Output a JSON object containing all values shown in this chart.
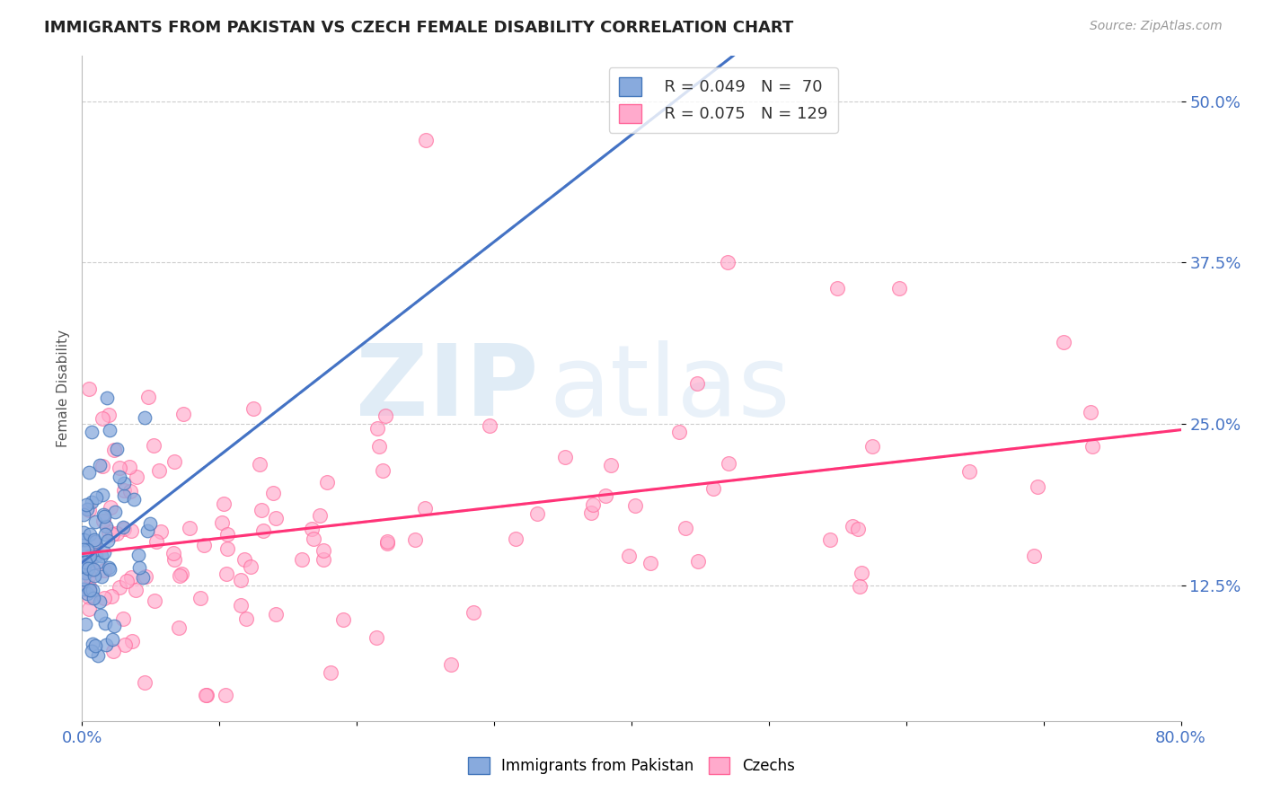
{
  "title": "IMMIGRANTS FROM PAKISTAN VS CZECH FEMALE DISABILITY CORRELATION CHART",
  "source": "Source: ZipAtlas.com",
  "ylabel": "Female Disability",
  "ytick_labels": [
    "12.5%",
    "25.0%",
    "37.5%",
    "50.0%"
  ],
  "ytick_values": [
    0.125,
    0.25,
    0.375,
    0.5
  ],
  "xmin": 0.0,
  "xmax": 0.8,
  "ymin": 0.02,
  "ymax": 0.535,
  "legend_r1": "R = 0.049",
  "legend_n1": "N =  70",
  "legend_r2": "R = 0.075",
  "legend_n2": "N = 129",
  "color_blue": "#88AADD",
  "color_blue_edge": "#4477BB",
  "color_pink": "#FFAACC",
  "color_pink_edge": "#FF6699",
  "color_trend_blue": "#4472C4",
  "color_trend_pink": "#FF3377",
  "color_trend_blue_dash": "#AACCEE",
  "color_trend_pink_dash": "#FFBBDD",
  "color_axis_label": "#4472C4",
  "color_grid": "#CCCCCC",
  "background_color": "#FFFFFF",
  "watermark_color": "#C8DDF0"
}
